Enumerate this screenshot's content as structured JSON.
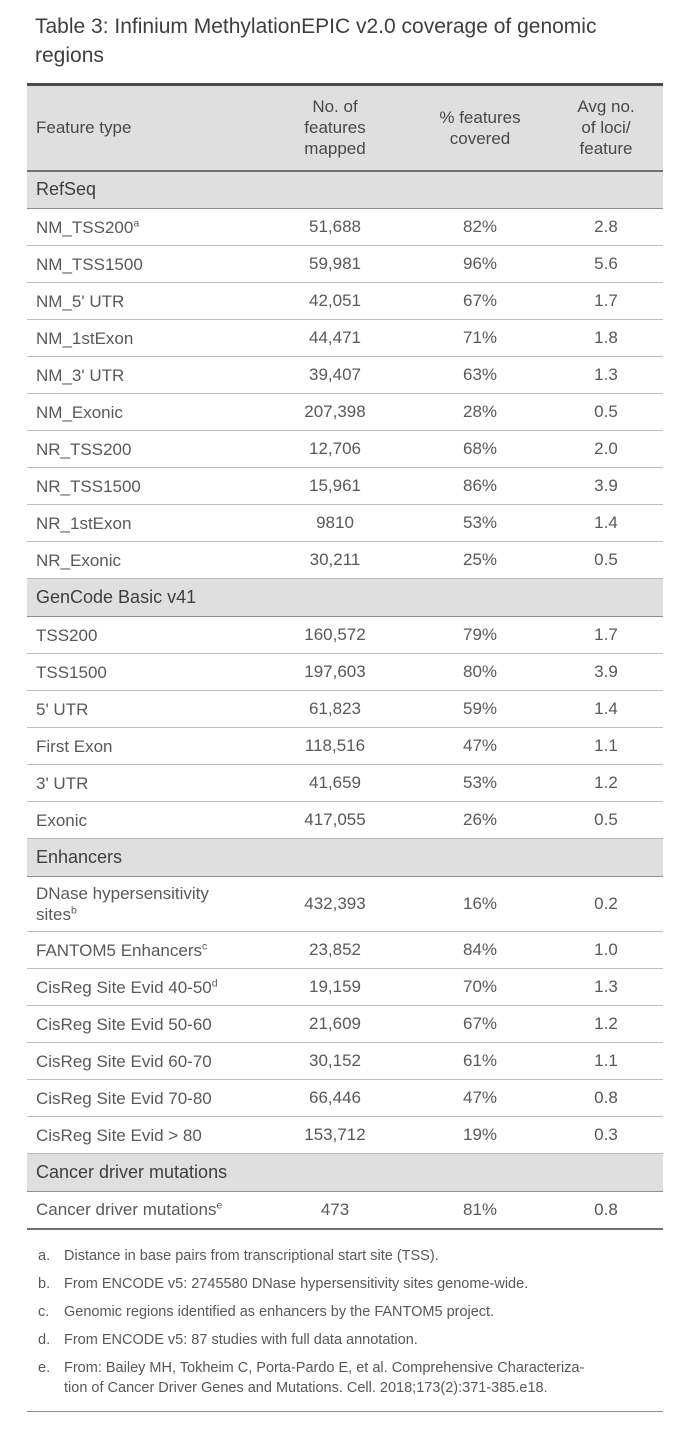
{
  "title": "Table 3: Infinium MethylationEPIC v2.0 coverage of genomic regions",
  "colors": {
    "band_gray": "#dfdfdf",
    "top_rule": "#4a4a4a",
    "row_rule": "#bdbdbd"
  },
  "table": {
    "columns": [
      {
        "lines": [
          "Feature type"
        ]
      },
      {
        "lines": [
          "No. of",
          "features",
          "mapped"
        ]
      },
      {
        "lines": [
          "% features",
          "covered"
        ]
      },
      {
        "lines": [
          "Avg no.",
          "of loci/",
          "feature"
        ]
      }
    ],
    "sections": [
      {
        "name": "RefSeq",
        "rows": [
          {
            "feature": "NM_TSS200",
            "sup": "a",
            "mapped": "51,688",
            "covered": "82%",
            "loci": "2.8"
          },
          {
            "feature": "NM_TSS1500",
            "sup": "",
            "mapped": "59,981",
            "covered": "96%",
            "loci": "5.6"
          },
          {
            "feature": "NM_5' UTR",
            "sup": "",
            "mapped": "42,051",
            "covered": "67%",
            "loci": "1.7"
          },
          {
            "feature": "NM_1stExon",
            "sup": "",
            "mapped": "44,471",
            "covered": "71%",
            "loci": "1.8"
          },
          {
            "feature": "NM_3' UTR",
            "sup": "",
            "mapped": "39,407",
            "covered": "63%",
            "loci": "1.3"
          },
          {
            "feature": "NM_Exonic",
            "sup": "",
            "mapped": "207,398",
            "covered": "28%",
            "loci": "0.5"
          },
          {
            "feature": "NR_TSS200",
            "sup": "",
            "mapped": "12,706",
            "covered": "68%",
            "loci": "2.0"
          },
          {
            "feature": "NR_TSS1500",
            "sup": "",
            "mapped": "15,961",
            "covered": "86%",
            "loci": "3.9"
          },
          {
            "feature": "NR_1stExon",
            "sup": "",
            "mapped": "9810",
            "covered": "53%",
            "loci": "1.4"
          },
          {
            "feature": "NR_Exonic",
            "sup": "",
            "mapped": "30,211",
            "covered": "25%",
            "loci": "0.5"
          }
        ]
      },
      {
        "name": "GenCode Basic v41",
        "rows": [
          {
            "feature": "TSS200",
            "sup": "",
            "mapped": "160,572",
            "covered": "79%",
            "loci": "1.7"
          },
          {
            "feature": "TSS1500",
            "sup": "",
            "mapped": "197,603",
            "covered": "80%",
            "loci": "3.9"
          },
          {
            "feature": "5' UTR",
            "sup": "",
            "mapped": "61,823",
            "covered": "59%",
            "loci": "1.4"
          },
          {
            "feature": "First Exon",
            "sup": "",
            "mapped": "118,516",
            "covered": "47%",
            "loci": "1.1"
          },
          {
            "feature": "3' UTR",
            "sup": "",
            "mapped": "41,659",
            "covered": "53%",
            "loci": "1.2"
          },
          {
            "feature": "Exonic",
            "sup": "",
            "mapped": "417,055",
            "covered": "26%",
            "loci": "0.5"
          }
        ]
      },
      {
        "name": "Enhancers",
        "rows": [
          {
            "feature": "DNase hypersensitivity sites",
            "sup": "b",
            "mapped": "432,393",
            "covered": "16%",
            "loci": "0.2"
          },
          {
            "feature": "FANTOM5 Enhancers",
            "sup": "c",
            "mapped": "23,852",
            "covered": "84%",
            "loci": "1.0"
          },
          {
            "feature": "CisReg Site Evid 40-50",
            "sup": "d",
            "mapped": "19,159",
            "covered": "70%",
            "loci": "1.3"
          },
          {
            "feature": "CisReg Site Evid 50-60",
            "sup": "",
            "mapped": "21,609",
            "covered": "67%",
            "loci": "1.2"
          },
          {
            "feature": "CisReg Site Evid 60-70",
            "sup": "",
            "mapped": "30,152",
            "covered": "61%",
            "loci": "1.1"
          },
          {
            "feature": "CisReg Site Evid 70-80",
            "sup": "",
            "mapped": "66,446",
            "covered": "47%",
            "loci": "0.8"
          },
          {
            "feature": "CisReg Site Evid > 80",
            "sup": "",
            "mapped": "153,712",
            "covered": "19%",
            "loci": "0.3"
          }
        ]
      },
      {
        "name": "Cancer driver mutations",
        "rows": [
          {
            "feature": "Cancer driver mutations",
            "sup": "e",
            "mapped": "473",
            "covered": "81%",
            "loci": "0.8"
          }
        ]
      }
    ]
  },
  "footnotes": [
    {
      "label": "a.",
      "lines": [
        "Distance in base pairs from transcriptional start site (TSS)."
      ]
    },
    {
      "label": "b.",
      "lines": [
        "From ENCODE v5: 2745580 DNase hypersensitivity sites genome-wide."
      ]
    },
    {
      "label": "c.",
      "lines": [
        "Genomic regions identified as enhancers by the FANTOM5 project."
      ]
    },
    {
      "label": "d.",
      "lines": [
        "From ENCODE v5: 87 studies with full data annotation."
      ]
    },
    {
      "label": "e.",
      "lines": [
        "From: Bailey MH, Tokheim C, Porta-Pardo E, et al. Comprehensive Characteriza-",
        "tion of Cancer Driver Genes and Mutations. Cell. 2018;173(2):371-385.e18."
      ]
    }
  ]
}
